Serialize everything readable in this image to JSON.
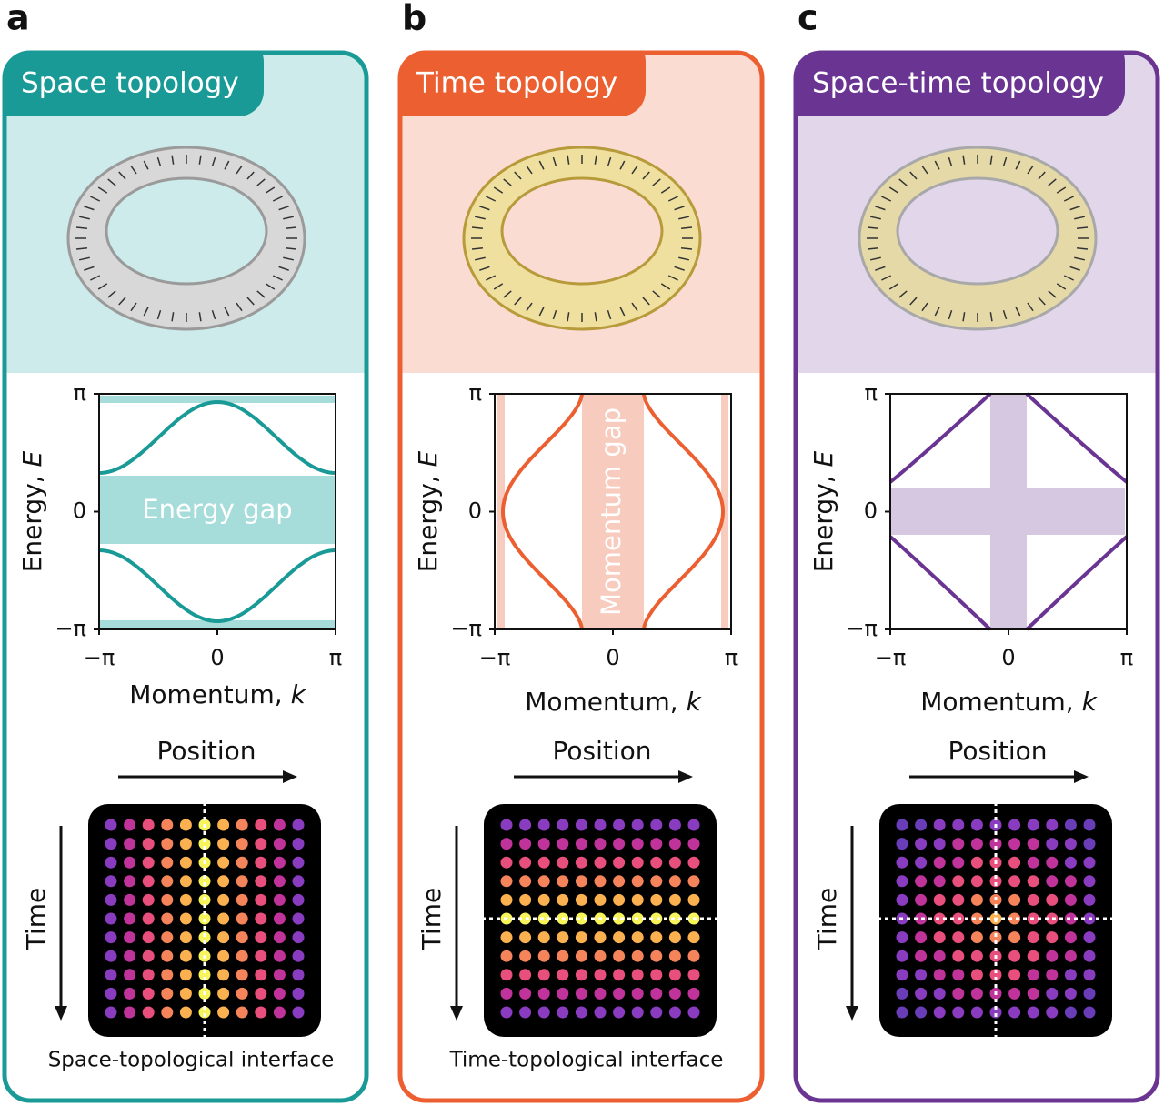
{
  "panels": [
    {
      "letter": "a",
      "title": "Space topology",
      "y_label": "Energy, ",
      "y_label_var": "E",
      "y_ticks": [
        "π",
        "0",
        "−π"
      ],
      "x_ticks": [
        "−π",
        "0",
        "π"
      ],
      "x_label": "Momentum, ",
      "x_label_var": "k",
      "gap_label": "Energy gap",
      "position_label": "Position",
      "time_label": "Time",
      "caption": "Space-topological interface"
    },
    {
      "letter": "b",
      "title": "Time topology",
      "y_label": "Energy, ",
      "y_label_var": "E",
      "y_ticks": [
        "π",
        "0",
        "−π"
      ],
      "x_ticks": [
        "−π",
        "0",
        "π"
      ],
      "x_label": "Momentum, ",
      "x_label_var": "k",
      "gap_label": "Momentum gap",
      "position_label": "Position",
      "time_label": "Time",
      "caption": "Time-topological interface"
    },
    {
      "letter": "c",
      "title": "Space-time topology",
      "y_label": "Energy, ",
      "y_label_var": "E",
      "y_ticks": [
        "π",
        "0",
        "−π"
      ],
      "x_ticks": [
        "−π",
        "0",
        "π"
      ],
      "x_label": "Momentum, ",
      "x_label_var": "k",
      "position_label": "Position",
      "time_label": "Time"
    }
  ]
}
